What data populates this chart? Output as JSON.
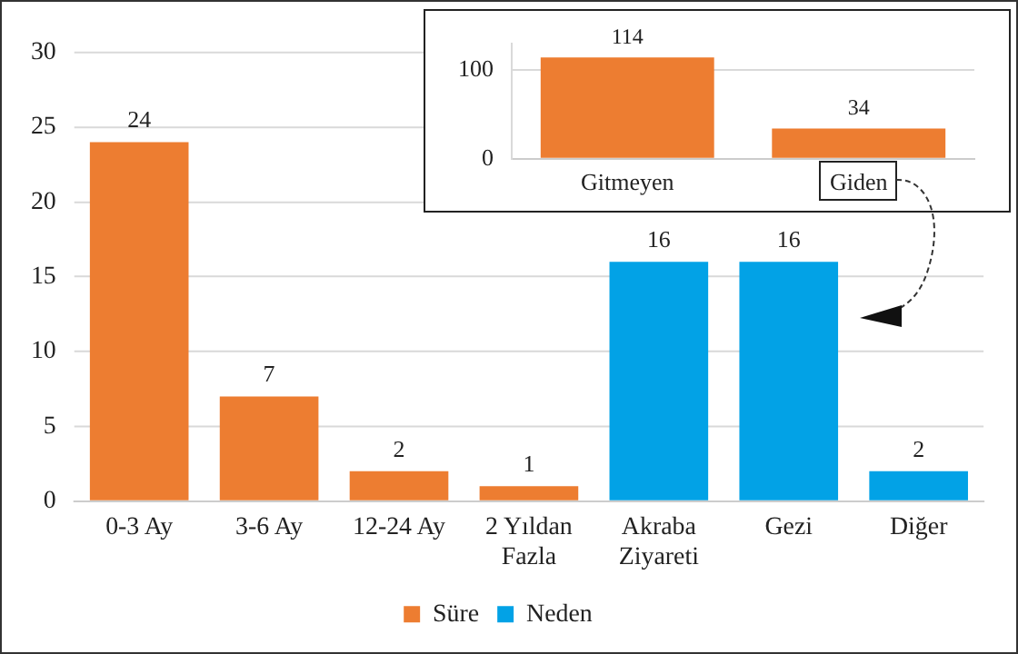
{
  "chart_data": [
    {
      "type": "bar",
      "categories": [
        "0-3 Ay",
        "3-6 Ay",
        "12-24 Ay",
        "2 Yıldan Fazla",
        "Akraba Ziyareti",
        "Gezi",
        "Diğer"
      ],
      "series": [
        {
          "name": "Süre",
          "color": "#ed7d31",
          "values": [
            24,
            7,
            2,
            1,
            null,
            null,
            null
          ]
        },
        {
          "name": "Neden",
          "color": "#02a2e6",
          "values": [
            null,
            null,
            null,
            null,
            16,
            16,
            2
          ]
        }
      ],
      "ylim": [
        0,
        30
      ],
      "yticks": [
        0,
        5,
        10,
        15,
        20,
        25,
        30
      ],
      "grid": "y",
      "legend": "bottom",
      "data_labels": true
    },
    {
      "type": "bar",
      "categories": [
        "Gitmeyen",
        "Giden"
      ],
      "values": [
        114,
        34
      ],
      "color": "#ed7d31",
      "ylim": [
        0,
        130
      ],
      "yticks": [
        0,
        100
      ],
      "grid": "y",
      "data_labels": true
    }
  ]
}
